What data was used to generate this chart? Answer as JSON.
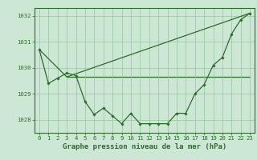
{
  "background_color": "#cce8d4",
  "grid_color": "#99c4a0",
  "line_color": "#2d6a2d",
  "marker_color": "#2d6a2d",
  "xlabel": "Graphe pression niveau de la mer (hPa)",
  "ylim": [
    1027.5,
    1032.3
  ],
  "yticks": [
    1028,
    1029,
    1030,
    1031,
    1032
  ],
  "xlim": [
    -0.5,
    23.5
  ],
  "xticks": [
    0,
    1,
    2,
    3,
    4,
    5,
    6,
    7,
    8,
    9,
    10,
    11,
    12,
    13,
    14,
    15,
    16,
    17,
    18,
    19,
    20,
    21,
    22,
    23
  ],
  "line1_x": [
    0,
    1,
    2,
    3,
    4,
    5,
    6,
    7,
    8,
    9,
    10,
    11,
    12,
    13,
    14,
    15,
    16,
    17,
    18,
    19,
    20,
    21,
    22,
    23
  ],
  "line1_y": [
    1030.7,
    1029.4,
    1029.6,
    1029.8,
    1029.7,
    1028.7,
    1028.2,
    1028.45,
    1028.15,
    1027.85,
    1028.25,
    1027.85,
    1027.85,
    1027.85,
    1027.85,
    1028.25,
    1028.25,
    1029.0,
    1029.35,
    1030.1,
    1030.4,
    1031.3,
    1031.85,
    1032.1
  ],
  "line2_x": [
    0,
    3,
    23
  ],
  "line2_y": [
    1030.7,
    1029.65,
    1032.1
  ],
  "line3_x": [
    3,
    15,
    23
  ],
  "line3_y": [
    1029.65,
    1029.65,
    1029.65
  ],
  "label_fontsize": 6.5,
  "tick_fontsize": 5.2
}
